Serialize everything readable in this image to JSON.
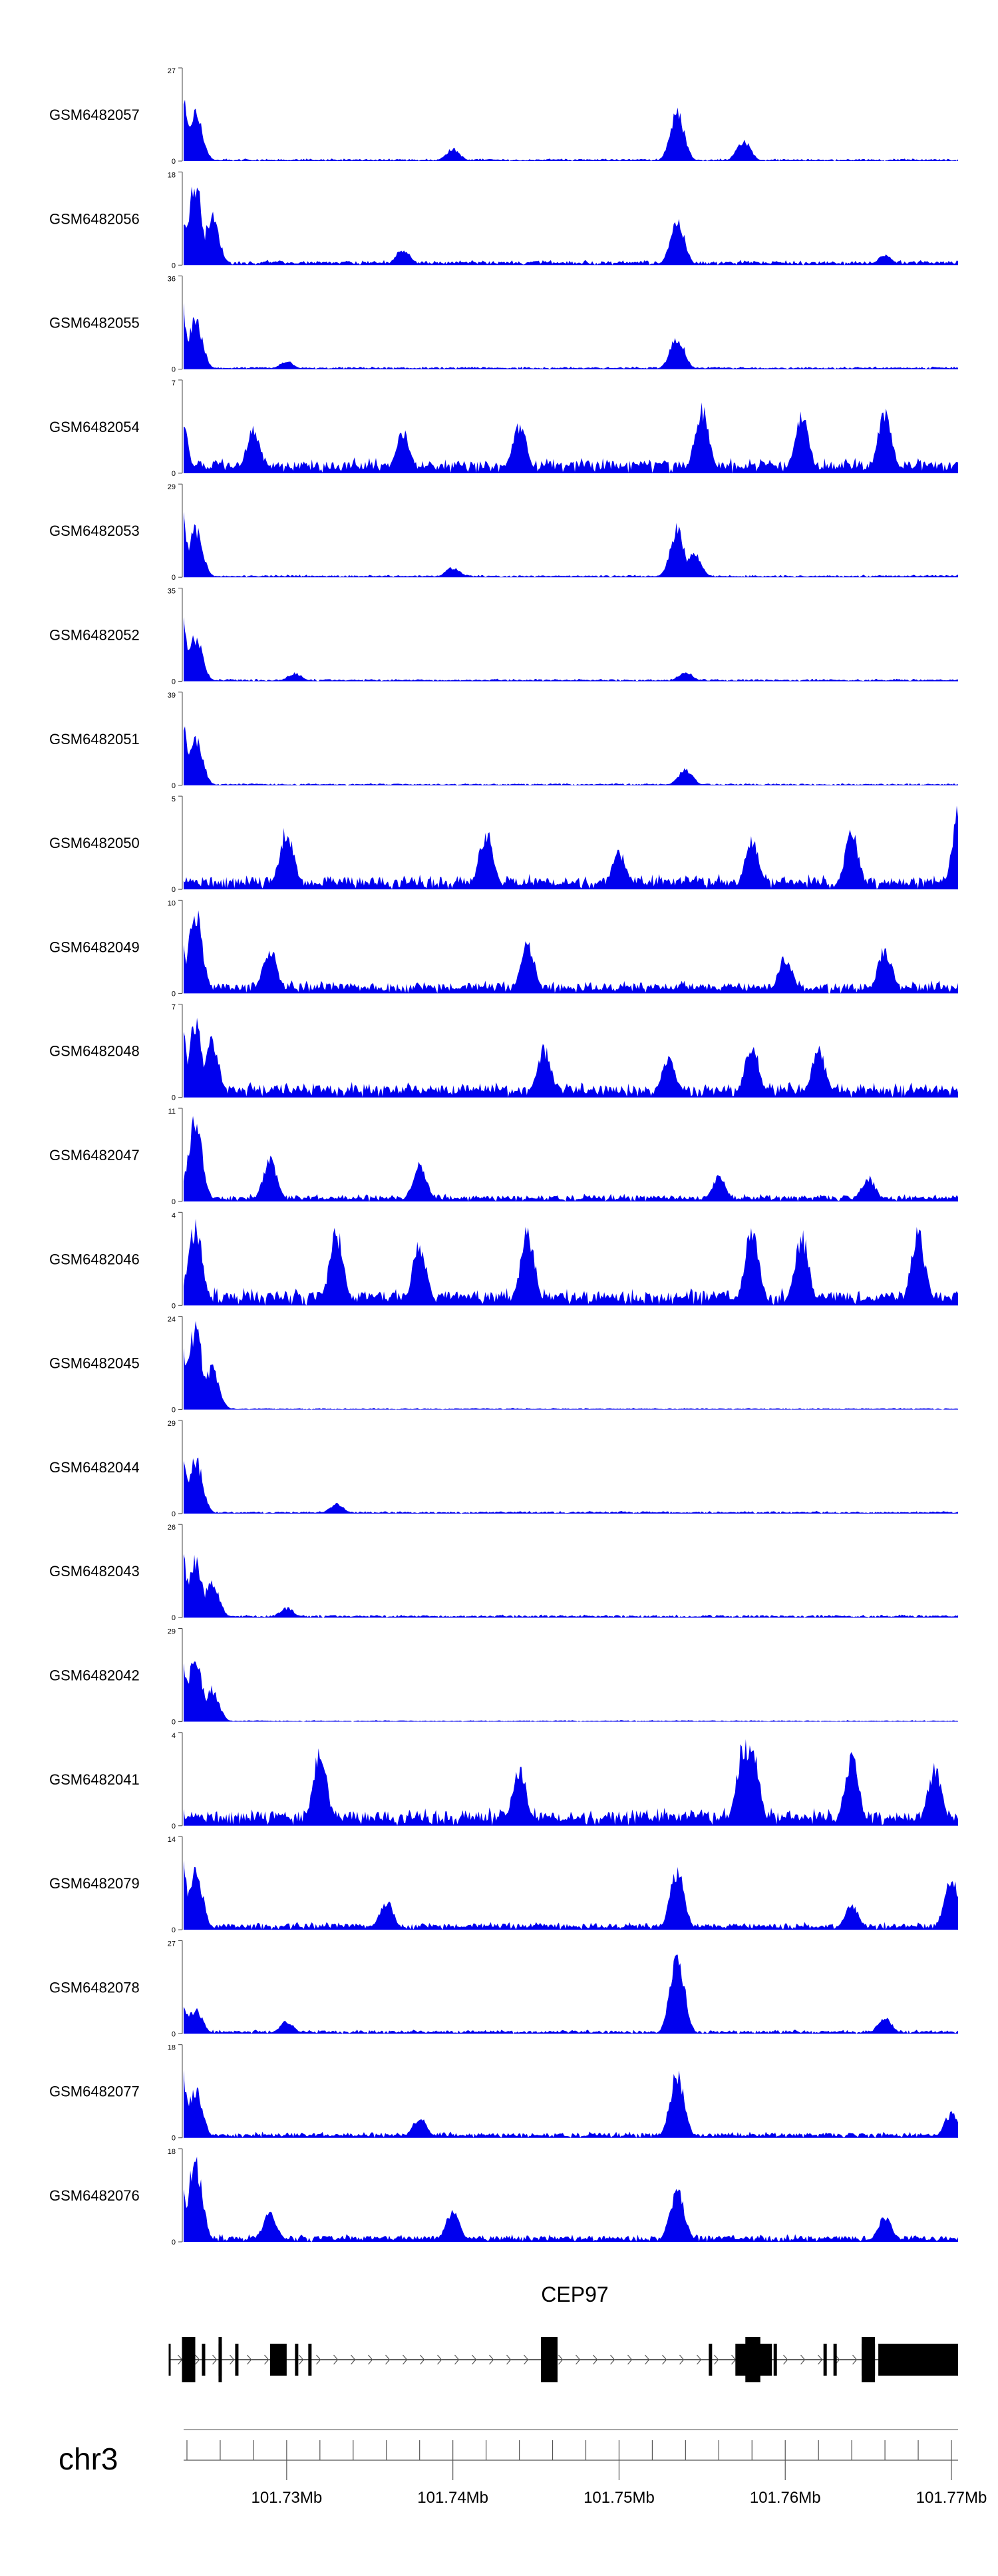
{
  "chart_data": {
    "type": "area",
    "colors": {
      "signal": "#0000ee",
      "gene": "#000000",
      "axis": "#777777"
    },
    "tracks": [
      {
        "name": "GSM6482057",
        "ymax": "27",
        "ymin": "0",
        "peaks": [
          [
            101.7235,
            1.0
          ],
          [
            101.7245,
            0.6
          ],
          [
            101.7535,
            0.6
          ],
          [
            101.7575,
            0.25
          ],
          [
            101.74,
            0.15
          ]
        ],
        "base": 0.05
      },
      {
        "name": "GSM6482056",
        "ymax": "18",
        "ymin": "0",
        "peaks": [
          [
            101.7235,
            0.8
          ],
          [
            101.7245,
            1.0
          ],
          [
            101.7255,
            0.6
          ],
          [
            101.7535,
            0.55
          ],
          [
            101.737,
            0.2
          ],
          [
            101.766,
            0.12
          ]
        ],
        "base": 0.1
      },
      {
        "name": "GSM6482055",
        "ymax": "36",
        "ymin": "0",
        "peaks": [
          [
            101.7235,
            1.0
          ],
          [
            101.7245,
            0.6
          ],
          [
            101.7535,
            0.4
          ],
          [
            101.73,
            0.1
          ]
        ],
        "base": 0.05
      },
      {
        "name": "GSM6482054",
        "ymax": "7",
        "ymin": "0",
        "peaks": [
          [
            101.7225,
            1.0
          ],
          [
            101.7235,
            0.85
          ],
          [
            101.755,
            0.8
          ],
          [
            101.766,
            0.75
          ],
          [
            101.744,
            0.6
          ],
          [
            101.761,
            0.7
          ],
          [
            101.737,
            0.5
          ],
          [
            101.728,
            0.55
          ]
        ],
        "base": 0.3
      },
      {
        "name": "GSM6482053",
        "ymax": "29",
        "ymin": "0",
        "peaks": [
          [
            101.7235,
            1.0
          ],
          [
            101.7245,
            0.6
          ],
          [
            101.7535,
            0.6
          ],
          [
            101.7545,
            0.3
          ],
          [
            101.74,
            0.12
          ]
        ],
        "base": 0.05
      },
      {
        "name": "GSM6482052",
        "ymax": "35",
        "ymin": "0",
        "peaks": [
          [
            101.7235,
            1.0
          ],
          [
            101.7245,
            0.55
          ],
          [
            101.7305,
            0.1
          ],
          [
            101.754,
            0.12
          ]
        ],
        "base": 0.05
      },
      {
        "name": "GSM6482051",
        "ymax": "39",
        "ymin": "0",
        "peaks": [
          [
            101.7235,
            1.0
          ],
          [
            101.7245,
            0.6
          ],
          [
            101.754,
            0.2
          ]
        ],
        "base": 0.04
      },
      {
        "name": "GSM6482050",
        "ymax": "5",
        "ymin": "0",
        "peaks": [
          [
            101.7705,
            1.0
          ],
          [
            101.7225,
            0.8
          ],
          [
            101.73,
            0.75
          ],
          [
            101.742,
            0.7
          ],
          [
            101.758,
            0.6
          ],
          [
            101.764,
            0.7
          ],
          [
            101.75,
            0.45
          ]
        ],
        "base": 0.3
      },
      {
        "name": "GSM6482049",
        "ymax": "10",
        "ymin": "0",
        "peaks": [
          [
            101.7245,
            1.0
          ],
          [
            101.7235,
            0.8
          ],
          [
            101.729,
            0.55
          ],
          [
            101.7445,
            0.6
          ],
          [
            101.766,
            0.55
          ],
          [
            101.76,
            0.45
          ]
        ],
        "base": 0.25
      },
      {
        "name": "GSM6482048",
        "ymax": "7",
        "ymin": "0",
        "peaks": [
          [
            101.7235,
            1.0
          ],
          [
            101.7245,
            0.9
          ],
          [
            101.7255,
            0.7
          ],
          [
            101.7455,
            0.6
          ],
          [
            101.758,
            0.65
          ],
          [
            101.762,
            0.6
          ],
          [
            101.753,
            0.5
          ]
        ],
        "base": 0.3
      },
      {
        "name": "GSM6482047",
        "ymax": "11",
        "ymin": "0",
        "peaks": [
          [
            101.7245,
            1.0
          ],
          [
            101.7225,
            0.6
          ],
          [
            101.729,
            0.5
          ],
          [
            101.738,
            0.45
          ],
          [
            101.756,
            0.3
          ],
          [
            101.765,
            0.3
          ]
        ],
        "base": 0.15
      },
      {
        "name": "GSM6482046",
        "ymax": "4",
        "ymin": "0",
        "peaks": [
          [
            101.7245,
            1.0
          ],
          [
            101.733,
            0.9
          ],
          [
            101.7445,
            0.9
          ],
          [
            101.758,
            0.95
          ],
          [
            101.768,
            0.9
          ],
          [
            101.761,
            0.85
          ],
          [
            101.738,
            0.75
          ]
        ],
        "base": 0.35
      },
      {
        "name": "GSM6482045",
        "ymax": "24",
        "ymin": "0",
        "peaks": [
          [
            101.7235,
            0.9
          ],
          [
            101.7245,
            1.0
          ],
          [
            101.7255,
            0.5
          ]
        ],
        "base": 0.03
      },
      {
        "name": "GSM6482044",
        "ymax": "29",
        "ymin": "0",
        "peaks": [
          [
            101.7235,
            1.0
          ],
          [
            101.7245,
            0.7
          ],
          [
            101.733,
            0.12
          ]
        ],
        "base": 0.05
      },
      {
        "name": "GSM6482043",
        "ymax": "26",
        "ymin": "0",
        "peaks": [
          [
            101.7235,
            1.0
          ],
          [
            101.7245,
            0.7
          ],
          [
            101.7255,
            0.45
          ],
          [
            101.73,
            0.12
          ]
        ],
        "base": 0.06
      },
      {
        "name": "GSM6482042",
        "ymax": "29",
        "ymin": "0",
        "peaks": [
          [
            101.7235,
            1.0
          ],
          [
            101.7245,
            0.8
          ],
          [
            101.7255,
            0.4
          ]
        ],
        "base": 0.03
      },
      {
        "name": "GSM6482041",
        "ymax": "4",
        "ymin": "0",
        "peaks": [
          [
            101.7575,
            1.0
          ],
          [
            101.758,
            0.95
          ],
          [
            101.732,
            0.9
          ],
          [
            101.723,
            0.8
          ],
          [
            101.764,
            0.85
          ],
          [
            101.744,
            0.7
          ],
          [
            101.769,
            0.7
          ]
        ],
        "base": 0.35
      },
      {
        "name": "GSM6482079",
        "ymax": "14",
        "ymin": "0",
        "peaks": [
          [
            101.7235,
            1.0
          ],
          [
            101.7245,
            0.75
          ],
          [
            101.7535,
            0.75
          ],
          [
            101.77,
            0.65
          ],
          [
            101.736,
            0.35
          ],
          [
            101.764,
            0.3
          ]
        ],
        "base": 0.15
      },
      {
        "name": "GSM6482078",
        "ymax": "27",
        "ymin": "0",
        "peaks": [
          [
            101.7535,
            1.0
          ],
          [
            101.7235,
            0.5
          ],
          [
            101.7245,
            0.3
          ],
          [
            101.766,
            0.2
          ],
          [
            101.73,
            0.15
          ]
        ],
        "base": 0.08
      },
      {
        "name": "GSM6482077",
        "ymax": "18",
        "ymin": "0",
        "peaks": [
          [
            101.7235,
            1.0
          ],
          [
            101.7535,
            0.8
          ],
          [
            101.7245,
            0.6
          ],
          [
            101.77,
            0.3
          ],
          [
            101.738,
            0.25
          ]
        ],
        "base": 0.12
      },
      {
        "name": "GSM6482076",
        "ymax": "18",
        "ymin": "0",
        "peaks": [
          [
            101.7245,
            1.0
          ],
          [
            101.7235,
            0.85
          ],
          [
            101.7535,
            0.65
          ],
          [
            101.74,
            0.4
          ],
          [
            101.729,
            0.35
          ],
          [
            101.766,
            0.3
          ]
        ],
        "base": 0.15
      }
    ],
    "gene": {
      "name": "CEP97",
      "exons": [
        [
          101.7229,
          101.723
        ],
        [
          101.7237,
          101.7245
        ],
        [
          101.7249,
          101.7251
        ],
        [
          101.7259,
          101.7261
        ],
        [
          101.7269,
          101.7271
        ],
        [
          101.729,
          101.73
        ],
        [
          101.7305,
          101.7307
        ],
        [
          101.7313,
          101.7315
        ],
        [
          101.7453,
          101.7463
        ],
        [
          101.7554,
          101.7556
        ],
        [
          101.757,
          101.7592
        ],
        [
          101.7593,
          101.7595
        ],
        [
          101.7623,
          101.7625
        ],
        [
          101.7629,
          101.7631
        ],
        [
          101.7646,
          101.7654
        ],
        [
          101.7656,
          101.7704
        ]
      ],
      "tall": [
        [
          101.7237,
          101.7245
        ],
        [
          101.7259,
          101.7261
        ],
        [
          101.7453,
          101.7463
        ],
        [
          101.7576,
          101.7585
        ],
        [
          101.7646,
          101.7654
        ]
      ],
      "strand": "+",
      "start": 101.7229,
      "end": 101.7704
    },
    "chrom": "chr3",
    "xlim": [
      101.7238,
      101.7704
    ],
    "ticks": [
      {
        "value": 101.73,
        "label": "101.73Mb"
      },
      {
        "value": 101.74,
        "label": "101.74Mb"
      },
      {
        "value": 101.75,
        "label": "101.75Mb"
      },
      {
        "value": 101.76,
        "label": "101.76Mb"
      },
      {
        "value": 101.77,
        "label": "101.77Mb"
      }
    ]
  }
}
